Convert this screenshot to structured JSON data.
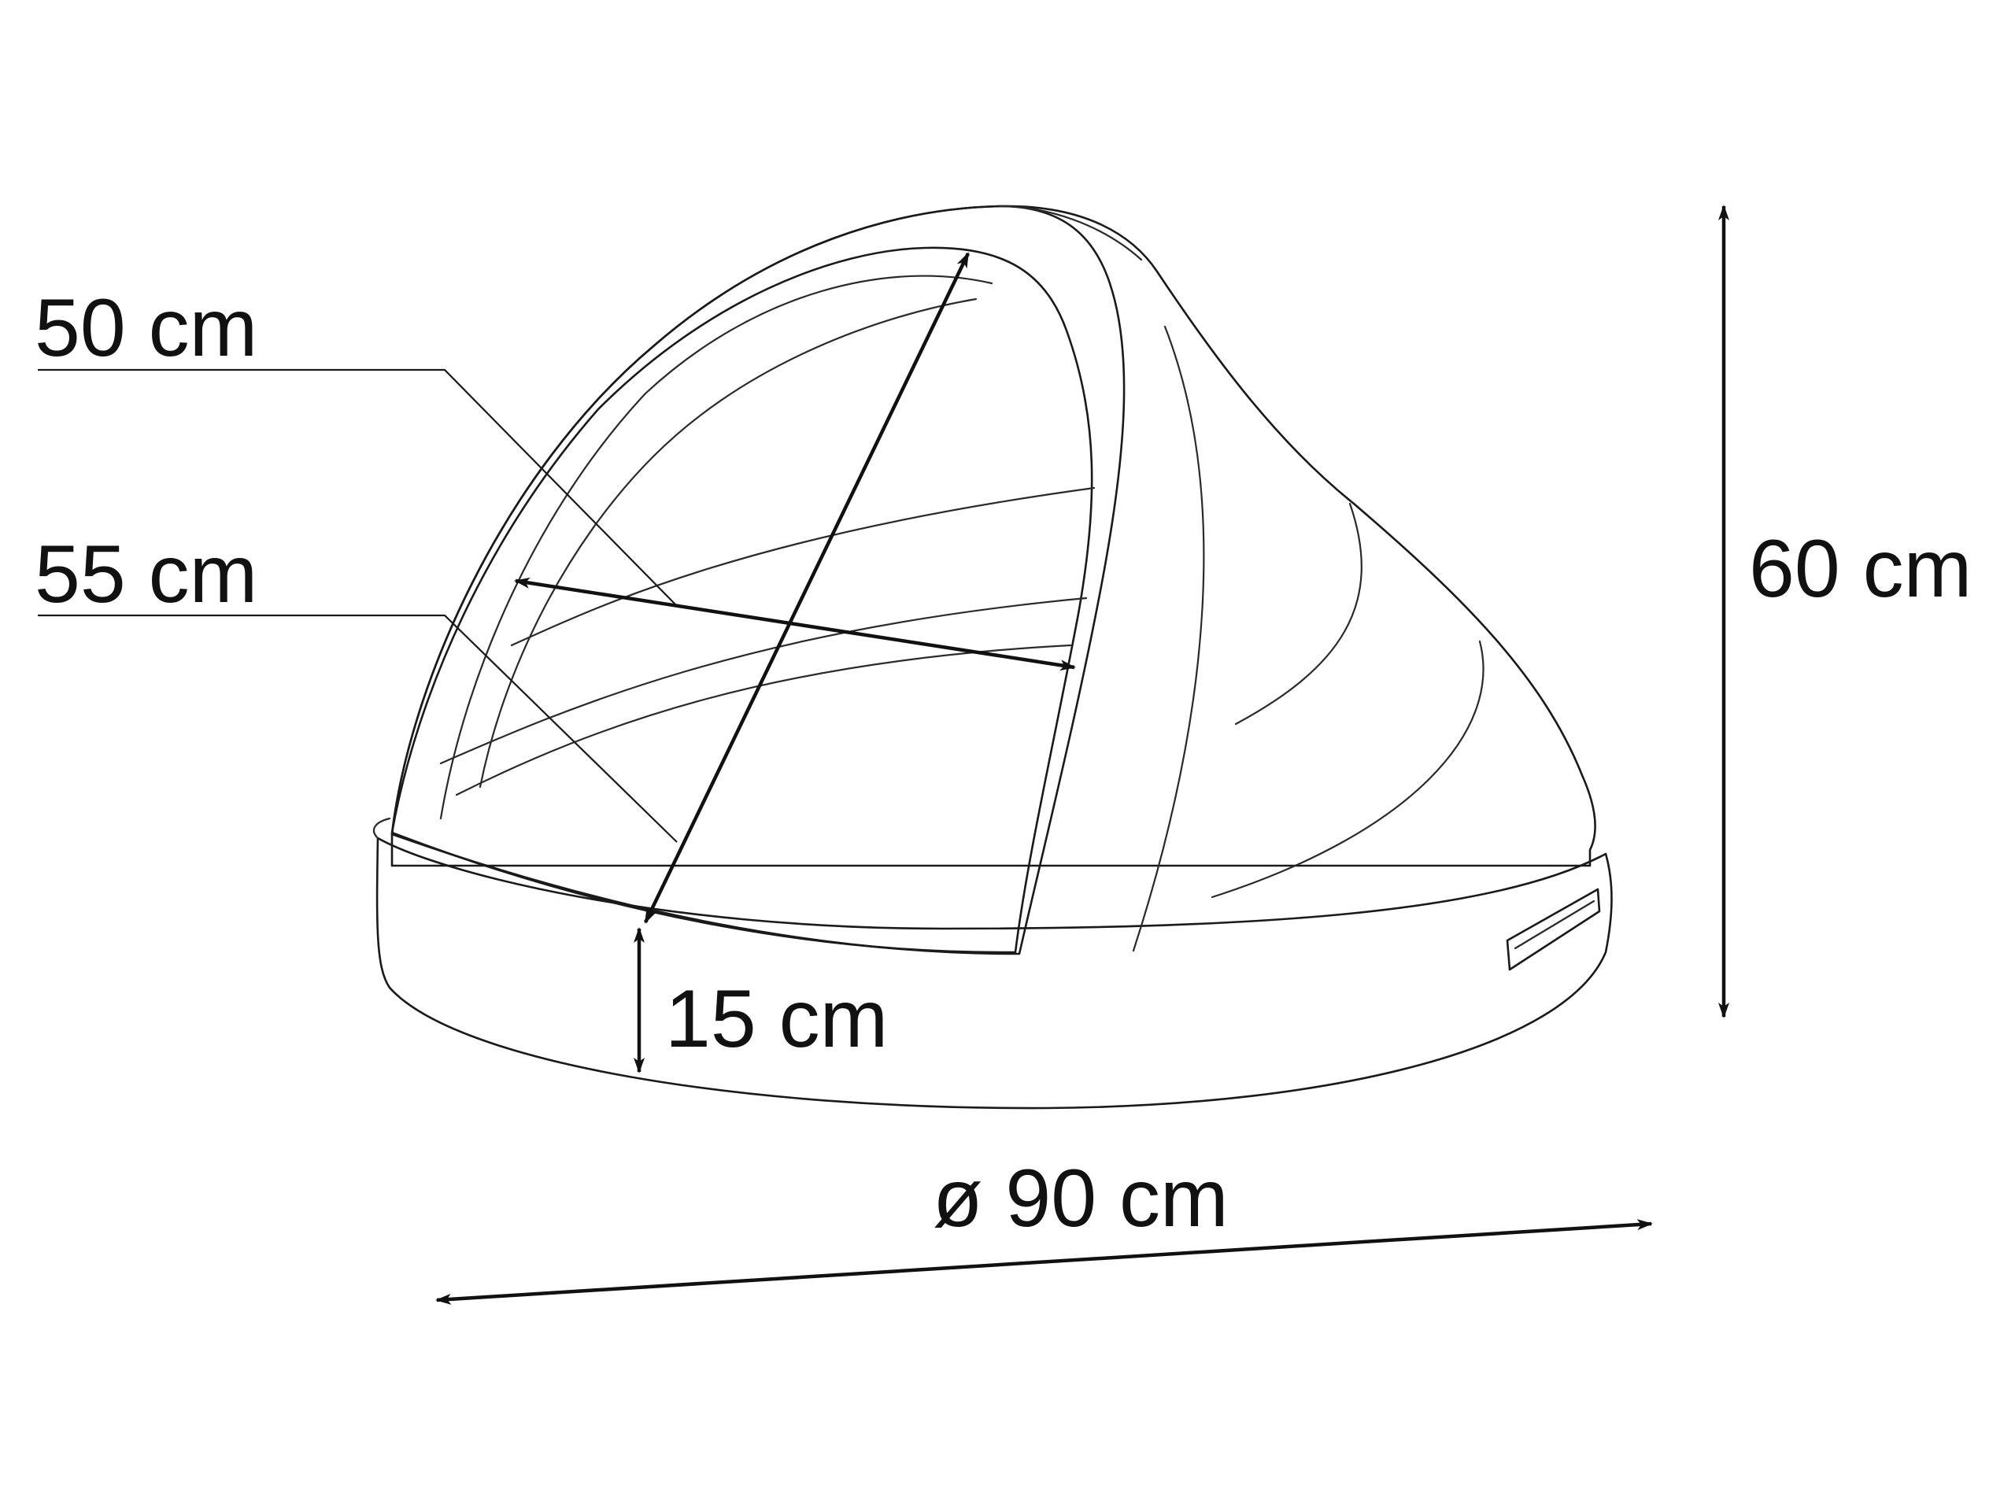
{
  "diagram": {
    "labels": {
      "depth": "50 cm",
      "opening_width": "55 cm",
      "base_height": "15 cm",
      "total_height": "60 cm",
      "diameter": "ø 90 cm"
    },
    "colors": {
      "shell": "#dcdcdc",
      "interior": "#9a9a9a",
      "rim": "#b5b5b5",
      "line": "#1a1a1a"
    },
    "icons": {
      "dimension-arrow": "arrowhead"
    }
  }
}
